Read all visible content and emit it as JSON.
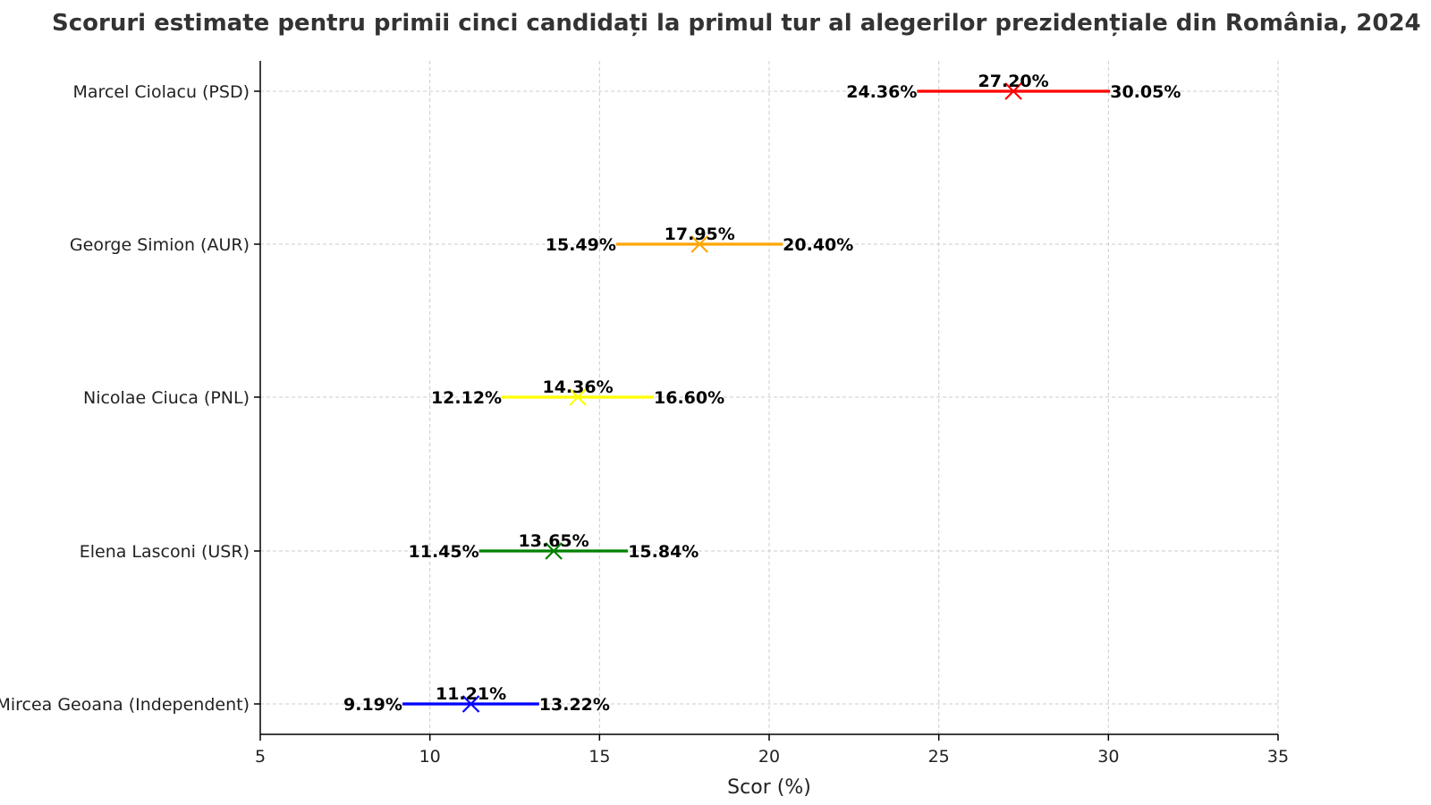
{
  "chart_data": {
    "type": "errorbar",
    "title": "Scoruri estimate pentru primii cinci candidați la primul tur al alegerilor prezidențiale din România, 2024",
    "xlabel": "Scor (%)",
    "ylabel": "",
    "xlim": [
      5,
      35
    ],
    "xticks": [
      5,
      10,
      15,
      20,
      25,
      30,
      35
    ],
    "grid": true,
    "categories": [
      "Marcel Ciolacu (PSD)",
      "George Simion (AUR)",
      "Nicolae Ciuca (PNL)",
      "Elena Lasconi (USR)",
      "Mircea Geoana (Independent)"
    ],
    "series": [
      {
        "candidate": "Marcel Ciolacu (PSD)",
        "low": 24.36,
        "estimate": 27.2,
        "high": 30.05,
        "color": "#ff0000",
        "labels": {
          "low": "24.36%",
          "estimate": "27.20%",
          "high": "30.05%"
        }
      },
      {
        "candidate": "George Simion (AUR)",
        "low": 15.49,
        "estimate": 17.95,
        "high": 20.4,
        "color": "#ffa500",
        "labels": {
          "low": "15.49%",
          "estimate": "17.95%",
          "high": "20.40%"
        }
      },
      {
        "candidate": "Nicolae Ciuca (PNL)",
        "low": 12.12,
        "estimate": 14.36,
        "high": 16.6,
        "color": "#ffff00",
        "labels": {
          "low": "12.12%",
          "estimate": "14.36%",
          "high": "16.60%"
        }
      },
      {
        "candidate": "Elena Lasconi (USR)",
        "low": 11.45,
        "estimate": 13.65,
        "high": 15.84,
        "color": "#008000",
        "labels": {
          "low": "11.45%",
          "estimate": "13.65%",
          "high": "15.84%"
        }
      },
      {
        "candidate": "Mircea Geoana (Independent)",
        "low": 9.19,
        "estimate": 11.21,
        "high": 13.22,
        "color": "#0000ff",
        "labels": {
          "low": "9.19%",
          "estimate": "11.21%",
          "high": "13.22%"
        }
      }
    ]
  }
}
